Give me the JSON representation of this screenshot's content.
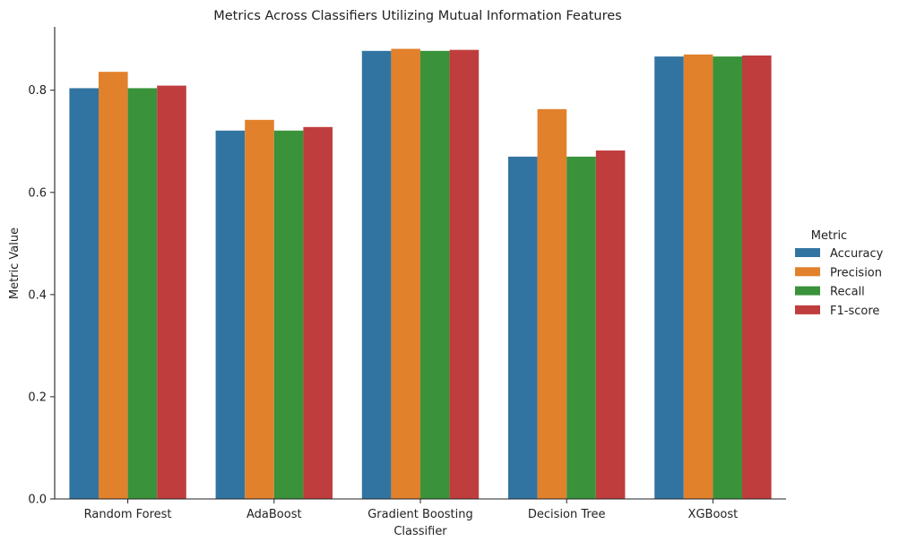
{
  "chart_data": {
    "type": "bar",
    "title": "Metrics Across Classifiers Utilizing Mutual Information Features",
    "xlabel": "Classifier",
    "ylabel": "Metric Value",
    "categories": [
      "Random Forest",
      "AdaBoost",
      "Gradient Boosting",
      "Decision Tree",
      "XGBoost"
    ],
    "series": [
      {
        "name": "Accuracy",
        "color": "#3274a1",
        "values": [
          0.804,
          0.721,
          0.877,
          0.67,
          0.866
        ]
      },
      {
        "name": "Precision",
        "color": "#e1812c",
        "values": [
          0.836,
          0.742,
          0.881,
          0.763,
          0.87
        ]
      },
      {
        "name": "Recall",
        "color": "#3a923a",
        "values": [
          0.804,
          0.721,
          0.877,
          0.67,
          0.866
        ]
      },
      {
        "name": "F1-score",
        "color": "#c03d3e",
        "values": [
          0.809,
          0.728,
          0.879,
          0.682,
          0.868
        ]
      }
    ],
    "ylim": [
      0,
      0.924
    ],
    "yticks": [
      0.0,
      0.2,
      0.4,
      0.6,
      0.8
    ],
    "ytick_labels": [
      "0.0",
      "0.2",
      "0.4",
      "0.6",
      "0.8"
    ],
    "grid": false,
    "legend": {
      "title": "Metric",
      "placement": "right"
    }
  }
}
